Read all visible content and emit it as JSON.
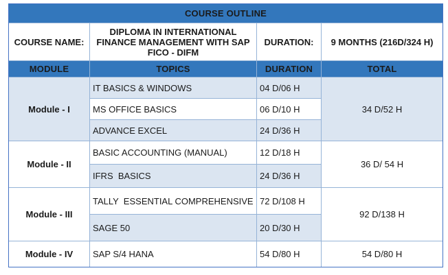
{
  "colors": {
    "header_blue": "#3377bc",
    "light_row": "#dbe5f1",
    "inner_border": "#95b3d7",
    "outer_border": "#4472c4",
    "navy_text": "#1f3864",
    "module_text": "#2e75b6"
  },
  "title": "COURSE OUTLINE",
  "course_info": {
    "name_label": "COURSE NAME:",
    "name_value": "DIPLOMA IN INTERNATIONAL FINANCE MANAGEMENT WITH SAP FICO - DIFM",
    "duration_label": "DURATION:",
    "duration_value": "9 MONTHS (216D/324 H)"
  },
  "columns": {
    "module": "MODULE",
    "topics": "TOPICS",
    "duration": "DURATION",
    "total": "TOTAL"
  },
  "modules": [
    {
      "name": "Module - I",
      "total": "34 D/52 H",
      "topics": [
        {
          "name": "IT BASICS & WINDOWS",
          "duration": "04 D/06 H"
        },
        {
          "name": "MS OFFICE BASICS",
          "duration": "06 D/10 H"
        },
        {
          "name": "ADVANCE EXCEL",
          "duration": "24 D/36 H"
        }
      ]
    },
    {
      "name": "Module - II",
      "total": "36 D/ 54 H",
      "topics": [
        {
          "name": "BASIC ACCOUNTING (MANUAL)",
          "duration": "12 D/18 H"
        },
        {
          "name": "IFRS  BASICS",
          "duration": "24 D/36 H"
        }
      ]
    },
    {
      "name": "Module - III",
      "total": "92 D/138 H",
      "topics": [
        {
          "name": "TALLY  ESSENTIAL COMPREHENSIVE",
          "duration": "72 D/108 H"
        },
        {
          "name": "SAGE 50",
          "duration": "20 D/30 H"
        }
      ]
    },
    {
      "name": "Module - IV",
      "total": "54 D/80 H",
      "topics": [
        {
          "name": "SAP S/4 HANA",
          "duration": "54 D/80 H"
        }
      ]
    }
  ]
}
